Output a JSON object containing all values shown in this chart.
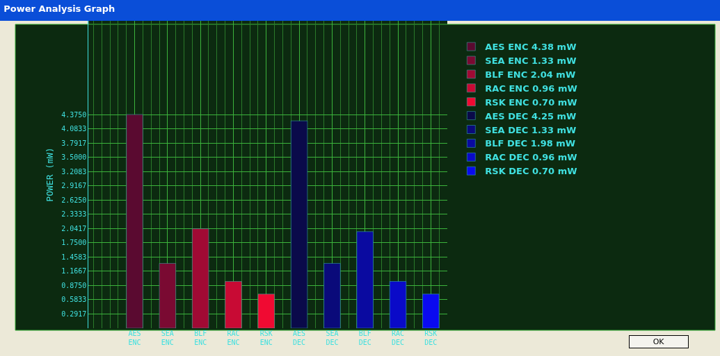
{
  "chart_data": {
    "type": "bar",
    "title": "Power Analysis Graph",
    "ylabel": "POWER (mW)",
    "categories": [
      "AES ENC",
      "SEA ENC",
      "BLF ENC",
      "RAC ENC",
      "RSK ENC",
      "AES DEC",
      "SEA DEC",
      "BLF DEC",
      "RAC DEC",
      "RSK DEC"
    ],
    "series": [
      {
        "name": "AES ENC 4.38 mW",
        "color": "#5a0a30",
        "values": [
          4.38,
          null,
          null,
          null,
          null,
          null,
          null,
          null,
          null,
          null
        ]
      },
      {
        "name": "SEA ENC 1.33 mW",
        "color": "#7a0a32",
        "values": [
          null,
          1.33,
          null,
          null,
          null,
          null,
          null,
          null,
          null,
          null
        ]
      },
      {
        "name": "BLF ENC 2.04 mW",
        "color": "#a00a34",
        "values": [
          null,
          null,
          2.04,
          null,
          null,
          null,
          null,
          null,
          null,
          null
        ]
      },
      {
        "name": "RAC ENC 0.96 mW",
        "color": "#c80a34",
        "values": [
          null,
          null,
          null,
          0.96,
          null,
          null,
          null,
          null,
          null,
          null
        ]
      },
      {
        "name": "RSK ENC 0.70 mW",
        "color": "#f00a32",
        "values": [
          null,
          null,
          null,
          null,
          0.7,
          null,
          null,
          null,
          null,
          null
        ]
      },
      {
        "name": "AES DEC 4.25 mW",
        "color": "#0a0a4a",
        "values": [
          null,
          null,
          null,
          null,
          null,
          4.25,
          null,
          null,
          null,
          null
        ]
      },
      {
        "name": "SEA DEC 1.33 mW",
        "color": "#0a0a7a",
        "values": [
          null,
          null,
          null,
          null,
          null,
          null,
          1.33,
          null,
          null,
          null
        ]
      },
      {
        "name": "BLF DEC 1.98 mW",
        "color": "#0a0aa0",
        "values": [
          null,
          null,
          null,
          null,
          null,
          null,
          null,
          1.98,
          null,
          null
        ]
      },
      {
        "name": "RAC DEC 0.96 mW",
        "color": "#0a0ac8",
        "values": [
          null,
          null,
          null,
          null,
          null,
          null,
          null,
          null,
          0.96,
          null
        ]
      },
      {
        "name": "RSK DEC 0.70 mW",
        "color": "#0a0af0",
        "values": [
          null,
          null,
          null,
          null,
          null,
          null,
          null,
          null,
          null,
          0.7
        ]
      }
    ],
    "ylim": [
      0,
      6.3
    ],
    "yticks": [
      {
        "value": 0.2917,
        "label": "0.2917"
      },
      {
        "value": 0.5833,
        "label": "0.5833"
      },
      {
        "value": 0.875,
        "label": "0.8750"
      },
      {
        "value": 1.1667,
        "label": "1.1667"
      },
      {
        "value": 1.4583,
        "label": "1.4583"
      },
      {
        "value": 1.75,
        "label": "1.7500"
      },
      {
        "value": 2.0417,
        "label": "2.0417"
      },
      {
        "value": 2.3333,
        "label": "2.3333"
      },
      {
        "value": 2.625,
        "label": "2.6250"
      },
      {
        "value": 2.9167,
        "label": "2.9167"
      },
      {
        "value": 3.2083,
        "label": "3.2083"
      },
      {
        "value": 3.5,
        "label": "3.5000"
      },
      {
        "value": 3.7917,
        "label": "3.7917"
      },
      {
        "value": 4.0833,
        "label": "4.0833"
      },
      {
        "value": 4.375,
        "label": "4.3750"
      }
    ],
    "grid": true,
    "legend": "right",
    "annotations": [
      "OK"
    ]
  }
}
